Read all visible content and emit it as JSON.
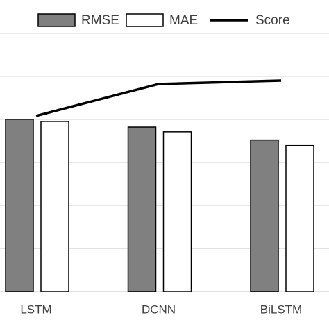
{
  "chart_data": {
    "type": "bar_line",
    "categories": [
      "LSTM",
      "DCNN",
      "BiLSTM"
    ],
    "series": [
      {
        "name": "RMSE",
        "type": "bar",
        "color": "#808080",
        "values": [
          4.0,
          3.82,
          3.52
        ]
      },
      {
        "name": "MAE",
        "type": "bar",
        "color": "#ffffff",
        "values": [
          3.95,
          3.71,
          3.39
        ]
      },
      {
        "name": "Score",
        "type": "line",
        "color": "#000000",
        "values": [
          4.08,
          4.82,
          4.9
        ]
      }
    ],
    "ylim": [
      0,
      6.77
    ],
    "yticks": [
      0,
      1,
      2,
      3,
      4,
      5,
      6
    ],
    "grid": true,
    "legend": "top"
  }
}
